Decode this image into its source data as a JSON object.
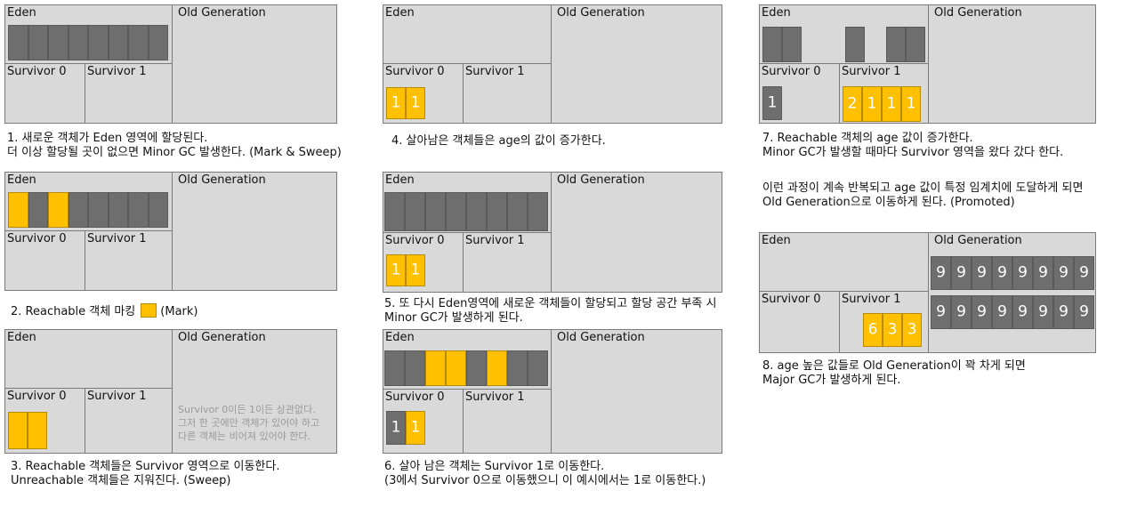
{
  "labels": {
    "eden": "Eden",
    "old_generation": "Old Generation",
    "survivor0": "Survivor 0",
    "survivor1": "Survivor 1"
  },
  "colors": {
    "heap_bg": "#d9d9d9",
    "unreachable": "#6e6e6e",
    "reachable": "#ffc000",
    "border": "#7a7a7a"
  },
  "steps": {
    "s1": {
      "caption1": "1. 새로운 객체가 Eden 영역에 할당된다.",
      "caption2": "더 이상 할당될 곳이 없으면 Minor GC 발생한다. (Mark & Sweep)",
      "eden_blocks": [
        "gray",
        "gray",
        "gray",
        "gray",
        "gray",
        "gray",
        "gray",
        "gray"
      ]
    },
    "s2": {
      "caption_prefix": "2. Reachable 객체 마킹",
      "caption_suffix": "(Mark)",
      "eden_blocks": [
        "yellow",
        "gray",
        "yellow",
        "gray",
        "gray",
        "gray",
        "gray",
        "gray"
      ]
    },
    "s3": {
      "caption1": "3. Reachable 객체들은 Survivor 영역으로 이동한다.",
      "caption2": "Unreachable 객체들은 지워진다. (Sweep)",
      "note1": "Survivor 0이든 1이든 상관없다.",
      "note2": "그저 한 곳에만 객체가 있어야 하고",
      "note3": "다른 객체는 비어져 있어야 한다.",
      "survivor0_blocks": [
        "yellow",
        "yellow"
      ]
    },
    "s4": {
      "caption1": "4. 살아남은 객체들은 age의 값이 증가한다.",
      "survivor0_blocks": [
        {
          "color": "yellow",
          "age": "1"
        },
        {
          "color": "yellow",
          "age": "1"
        }
      ]
    },
    "s5": {
      "caption1": "5. 또 다시 Eden영역에 새로운 객체들이 할당되고 할당 공간 부족 시",
      "caption2": "Minor GC가 발생하게 된다.",
      "eden_blocks": [
        "gray",
        "gray",
        "gray",
        "gray",
        "gray",
        "gray",
        "gray",
        "gray"
      ],
      "survivor0_blocks": [
        {
          "color": "yellow",
          "age": "1"
        },
        {
          "color": "yellow",
          "age": "1"
        }
      ]
    },
    "s6": {
      "caption1": "6. 살아 남은 객체는 Survivor 1로 이동한다.",
      "caption2": "(3에서 Survivor 0으로 이동했으니 이 예시에서는 1로 이동한다.)",
      "eden_blocks": [
        "gray",
        "gray",
        "yellow",
        "yellow",
        "gray",
        "yellow",
        "gray",
        "gray"
      ],
      "survivor0_blocks": [
        {
          "color": "gray",
          "age": "1"
        },
        {
          "color": "yellow",
          "age": "1"
        }
      ]
    },
    "s7": {
      "caption1": "7. Reachable 객체의 age 값이 증가한다.",
      "caption2": "Minor GC가 발생할 때마다 Survivor 영역을 왔다 갔다 한다.",
      "caption3": "이런 과정이 계속 반복되고 age 값이 특정 임계치에 도달하게 되면",
      "caption4": "Old Generation으로 이동하게 된다. (Promoted)",
      "survivor0_blocks": [
        {
          "color": "gray",
          "age": "1"
        }
      ],
      "survivor1_blocks": [
        {
          "color": "yellow",
          "age": "2"
        },
        {
          "color": "yellow",
          "age": "1"
        },
        {
          "color": "yellow",
          "age": "1"
        },
        {
          "color": "yellow",
          "age": "1"
        }
      ]
    },
    "s8": {
      "caption1": "8. age 높은 값들로 Old Generation이 꽉 차게 되면",
      "caption2": "Major GC가 발생하게 된다.",
      "survivor1_blocks": [
        {
          "color": "yellow",
          "age": "6"
        },
        {
          "color": "yellow",
          "age": "3"
        },
        {
          "color": "yellow",
          "age": "3"
        }
      ],
      "old_row1": [
        "9",
        "9",
        "9",
        "9",
        "9",
        "9",
        "9",
        "9"
      ],
      "old_row2": [
        "9",
        "9",
        "9",
        "9",
        "9",
        "9",
        "9",
        "9"
      ]
    }
  }
}
